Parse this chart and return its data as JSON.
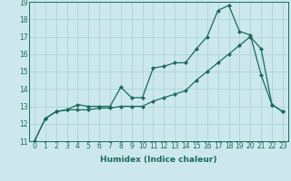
{
  "xlabel": "Humidex (Indice chaleur)",
  "ylabel": "",
  "background_color": "#cce8ec",
  "line_color": "#1a6b5a",
  "grid_color": "#aad4d8",
  "x_data": [
    0,
    1,
    2,
    3,
    4,
    5,
    6,
    7,
    8,
    9,
    10,
    11,
    12,
    13,
    14,
    15,
    16,
    17,
    18,
    19,
    20,
    21,
    22,
    23
  ],
  "y_curve1": [
    11.0,
    12.3,
    12.7,
    12.8,
    13.1,
    13.0,
    13.0,
    13.0,
    14.1,
    13.5,
    13.5,
    15.2,
    15.3,
    15.5,
    15.5,
    16.3,
    17.0,
    18.5,
    18.8,
    17.3,
    17.1,
    14.8,
    13.1,
    12.7
  ],
  "y_line2": [
    11.0,
    12.3,
    12.7,
    12.8,
    12.8,
    12.8,
    12.9,
    12.9,
    13.0,
    13.0,
    13.0,
    13.3,
    13.5,
    13.7,
    13.9,
    14.5,
    15.0,
    15.5,
    16.0,
    16.5,
    17.0,
    16.3,
    13.1,
    12.7
  ],
  "ylim": [
    11,
    19
  ],
  "xlim": [
    -0.5,
    23.5
  ],
  "yticks": [
    11,
    12,
    13,
    14,
    15,
    16,
    17,
    18,
    19
  ],
  "xticks": [
    0,
    1,
    2,
    3,
    4,
    5,
    6,
    7,
    8,
    9,
    10,
    11,
    12,
    13,
    14,
    15,
    16,
    17,
    18,
    19,
    20,
    21,
    22,
    23
  ],
  "tick_fontsize": 5.5,
  "xlabel_fontsize": 6.5
}
